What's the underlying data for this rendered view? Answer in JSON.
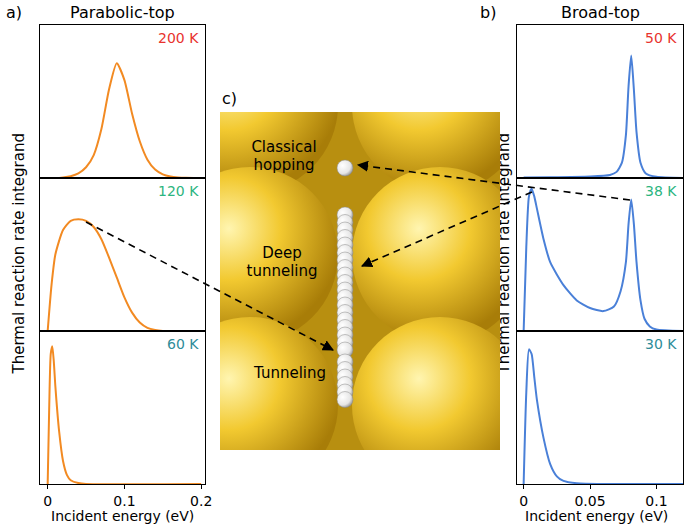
{
  "chart_data": [
    {
      "type": "line",
      "panel_label": "a)",
      "title": "Parabolic-top",
      "xlabel": "Incident energy (eV)",
      "ylabel": "Thermal reaction rate integrand",
      "xlim": [
        -0.01,
        0.205
      ],
      "xticks": [
        0,
        0.1,
        0.2
      ],
      "ylim": [
        0,
        1
      ],
      "tick_labels": "x",
      "grid": false,
      "color": "#f28a22",
      "series": [
        {
          "name": "200 K",
          "x": [
            0,
            0.01,
            0.02,
            0.03,
            0.04,
            0.05,
            0.06,
            0.07,
            0.08,
            0.09,
            0.1,
            0.11,
            0.12,
            0.13,
            0.14,
            0.15,
            0.16,
            0.17,
            0.18,
            0.19,
            0.2
          ],
          "values": [
            0,
            0,
            0.004,
            0.012,
            0.03,
            0.07,
            0.15,
            0.32,
            0.58,
            0.75,
            0.64,
            0.42,
            0.24,
            0.12,
            0.055,
            0.024,
            0.01,
            0.004,
            0.001,
            0,
            0
          ]
        },
        {
          "name": "120 K",
          "x": [
            0,
            0.005,
            0.01,
            0.02,
            0.03,
            0.04,
            0.05,
            0.06,
            0.07,
            0.08,
            0.09,
            0.1,
            0.11,
            0.12,
            0.13,
            0.14,
            0.15,
            0.2
          ],
          "values": [
            0,
            0.3,
            0.5,
            0.66,
            0.72,
            0.73,
            0.72,
            0.68,
            0.6,
            0.48,
            0.35,
            0.22,
            0.12,
            0.055,
            0.02,
            0.006,
            0,
            0
          ]
        },
        {
          "name": "60 K",
          "x": [
            0,
            0.002,
            0.004,
            0.006,
            0.008,
            0.01,
            0.015,
            0.02,
            0.025,
            0.03,
            0.04,
            0.05,
            0.2
          ],
          "values": [
            0,
            0.5,
            0.85,
            0.9,
            0.8,
            0.64,
            0.34,
            0.15,
            0.06,
            0.025,
            0.006,
            0,
            0
          ]
        }
      ]
    },
    {
      "type": "line",
      "panel_label": "b)",
      "title": "Broad-top",
      "xlabel": "Incident energy (eV)",
      "ylabel": "Thermal reaction rate integrand",
      "xlim": [
        -0.005,
        0.12
      ],
      "xticks": [
        0,
        0.05,
        0.1
      ],
      "ylim": [
        0,
        1
      ],
      "tick_labels": "x",
      "grid": false,
      "color": "#4a80d8",
      "series": [
        {
          "name": "50 K",
          "x": [
            0,
            0.02,
            0.05,
            0.065,
            0.07,
            0.074,
            0.077,
            0.079,
            0.081,
            0.083,
            0.085,
            0.088,
            0.092,
            0.1,
            0.12
          ],
          "values": [
            0.004,
            0.005,
            0.01,
            0.02,
            0.04,
            0.1,
            0.28,
            0.6,
            0.8,
            0.58,
            0.3,
            0.1,
            0.03,
            0.008,
            0
          ]
        },
        {
          "name": "38 K",
          "x": [
            0,
            0.002,
            0.004,
            0.006,
            0.008,
            0.01,
            0.015,
            0.02,
            0.03,
            0.04,
            0.05,
            0.06,
            0.068,
            0.073,
            0.077,
            0.079,
            0.081,
            0.083,
            0.085,
            0.088,
            0.091,
            0.095,
            0.1,
            0.12
          ],
          "values": [
            0,
            0.55,
            0.88,
            0.93,
            0.88,
            0.8,
            0.6,
            0.45,
            0.3,
            0.2,
            0.15,
            0.13,
            0.16,
            0.26,
            0.45,
            0.7,
            0.86,
            0.7,
            0.45,
            0.2,
            0.08,
            0.03,
            0.01,
            0
          ]
        },
        {
          "name": "30 K",
          "x": [
            0,
            0.002,
            0.004,
            0.006,
            0.008,
            0.01,
            0.015,
            0.02,
            0.025,
            0.03,
            0.04,
            0.06,
            0.12
          ],
          "values": [
            0,
            0.6,
            0.88,
            0.85,
            0.7,
            0.55,
            0.3,
            0.13,
            0.05,
            0.02,
            0.005,
            0,
            0
          ]
        }
      ]
    }
  ],
  "diagram": {
    "panel_label": "c)",
    "labels": [
      "Classical hopping",
      "Deep tunneling",
      "Tunneling"
    ]
  }
}
